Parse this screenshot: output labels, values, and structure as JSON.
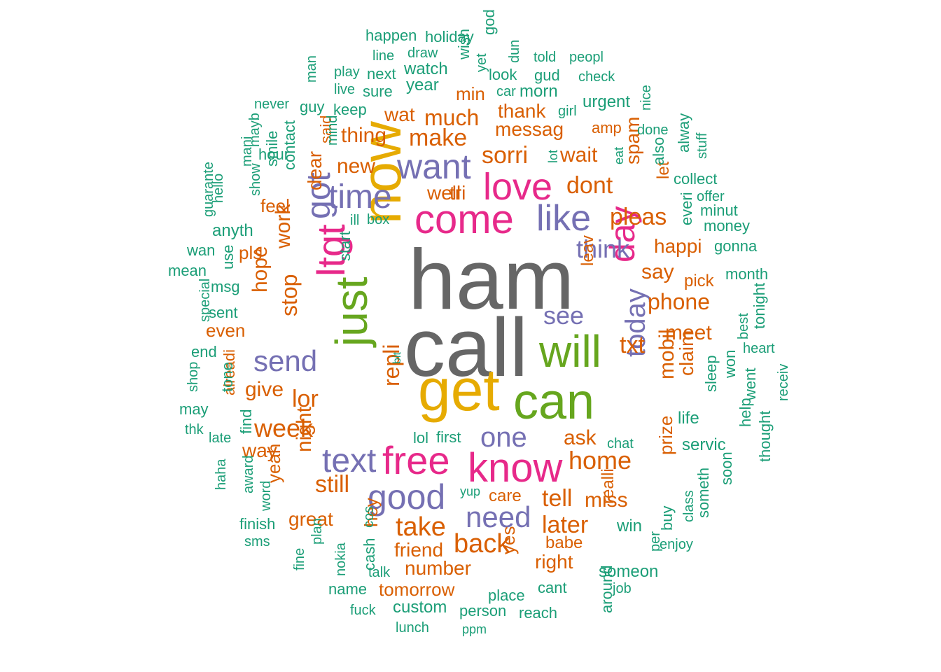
{
  "palette": {
    "gray": "#666666",
    "green": "#1b9e77",
    "orange": "#d95f02",
    "purple": "#7570b3",
    "pink": "#e7298a",
    "olive": "#66a61e",
    "gold": "#e6ab02"
  },
  "words": [
    {
      "text": "ham",
      "color": "gray"
    },
    {
      "text": "call",
      "color": "gray"
    },
    {
      "text": "now",
      "color": "gold"
    },
    {
      "text": "get",
      "color": "gold"
    },
    {
      "text": "can",
      "color": "olive"
    },
    {
      "text": "will",
      "color": "olive"
    },
    {
      "text": "just",
      "color": "olive"
    },
    {
      "text": "come",
      "color": "pink"
    },
    {
      "text": "know",
      "color": "pink"
    },
    {
      "text": "free",
      "color": "pink"
    },
    {
      "text": "love",
      "color": "pink"
    },
    {
      "text": "ltgt",
      "color": "pink"
    },
    {
      "text": "day",
      "color": "pink"
    },
    {
      "text": "want",
      "color": "purple"
    },
    {
      "text": "time",
      "color": "purple"
    },
    {
      "text": "like",
      "color": "purple"
    },
    {
      "text": "good",
      "color": "purple"
    },
    {
      "text": "text",
      "color": "purple"
    },
    {
      "text": "send",
      "color": "purple"
    },
    {
      "text": "got",
      "color": "purple"
    },
    {
      "text": "need",
      "color": "purple"
    },
    {
      "text": "one",
      "color": "purple"
    },
    {
      "text": "today",
      "color": "purple"
    },
    {
      "text": "see",
      "color": "purple"
    },
    {
      "text": "think",
      "color": "purple"
    },
    {
      "text": "take",
      "color": "orange"
    },
    {
      "text": "back",
      "color": "orange"
    },
    {
      "text": "home",
      "color": "orange"
    },
    {
      "text": "sorri",
      "color": "orange"
    },
    {
      "text": "make",
      "color": "orange"
    },
    {
      "text": "week",
      "color": "orange"
    },
    {
      "text": "still",
      "color": "orange"
    },
    {
      "text": "later",
      "color": "orange"
    },
    {
      "text": "tell",
      "color": "orange"
    },
    {
      "text": "miss",
      "color": "orange"
    },
    {
      "text": "phone",
      "color": "orange"
    },
    {
      "text": "dont",
      "color": "orange"
    },
    {
      "text": "pleas",
      "color": "orange"
    },
    {
      "text": "much",
      "color": "orange"
    },
    {
      "text": "new",
      "color": "orange"
    },
    {
      "text": "meet",
      "color": "orange"
    },
    {
      "text": "txt",
      "color": "orange"
    },
    {
      "text": "lor",
      "color": "orange"
    },
    {
      "text": "repli",
      "color": "orange"
    },
    {
      "text": "stop",
      "color": "orange"
    },
    {
      "text": "friend",
      "color": "orange"
    },
    {
      "text": "number",
      "color": "orange"
    },
    {
      "text": "mobil",
      "color": "orange"
    },
    {
      "text": "say",
      "color": "orange"
    },
    {
      "text": "happi",
      "color": "orange"
    },
    {
      "text": "work",
      "color": "orange"
    },
    {
      "text": "ask",
      "color": "orange"
    },
    {
      "text": "wait",
      "color": "orange"
    },
    {
      "text": "thing",
      "color": "orange"
    },
    {
      "text": "messag",
      "color": "orange"
    },
    {
      "text": "thank",
      "color": "orange"
    },
    {
      "text": "wat",
      "color": "orange"
    },
    {
      "text": "well",
      "color": "orange"
    },
    {
      "text": "tri",
      "color": "orange"
    },
    {
      "text": "hope",
      "color": "orange"
    },
    {
      "text": "give",
      "color": "orange"
    },
    {
      "text": "night",
      "color": "orange"
    },
    {
      "text": "great",
      "color": "orange"
    },
    {
      "text": "claim",
      "color": "orange"
    },
    {
      "text": "yes",
      "color": "orange"
    },
    {
      "text": "right",
      "color": "orange"
    },
    {
      "text": "tomorrow",
      "color": "orange"
    },
    {
      "text": "min",
      "color": "orange"
    },
    {
      "text": "dear",
      "color": "orange"
    },
    {
      "text": "spam",
      "color": "orange"
    },
    {
      "text": "feel",
      "color": "orange"
    },
    {
      "text": "pls",
      "color": "orange"
    },
    {
      "text": "even",
      "color": "orange"
    },
    {
      "text": "way",
      "color": "orange"
    },
    {
      "text": "yeah",
      "color": "orange"
    },
    {
      "text": "hey",
      "color": "orange"
    },
    {
      "text": "prize",
      "color": "orange"
    },
    {
      "text": "babe",
      "color": "orange"
    },
    {
      "text": "care",
      "color": "orange"
    },
    {
      "text": "realli",
      "color": "orange"
    },
    {
      "text": "pick",
      "color": "orange"
    },
    {
      "text": "leav",
      "color": "orange"
    },
    {
      "text": "amp",
      "color": "orange"
    },
    {
      "text": "let",
      "color": "orange"
    },
    {
      "text": "alreadi",
      "color": "orange"
    },
    {
      "text": "said",
      "color": "orange"
    },
    {
      "text": "happen",
      "color": "green"
    },
    {
      "text": "holiday",
      "color": "green"
    },
    {
      "text": "god",
      "color": "green"
    },
    {
      "text": "line",
      "color": "green"
    },
    {
      "text": "draw",
      "color": "green"
    },
    {
      "text": "wish",
      "color": "green"
    },
    {
      "text": "dun",
      "color": "green"
    },
    {
      "text": "told",
      "color": "green"
    },
    {
      "text": "peopl",
      "color": "green"
    },
    {
      "text": "play",
      "color": "green"
    },
    {
      "text": "next",
      "color": "green"
    },
    {
      "text": "watch",
      "color": "green"
    },
    {
      "text": "yet",
      "color": "green"
    },
    {
      "text": "look",
      "color": "green"
    },
    {
      "text": "gud",
      "color": "green"
    },
    {
      "text": "check",
      "color": "green"
    },
    {
      "text": "man",
      "color": "green"
    },
    {
      "text": "live",
      "color": "green"
    },
    {
      "text": "sure",
      "color": "green"
    },
    {
      "text": "year",
      "color": "green"
    },
    {
      "text": "car",
      "color": "green"
    },
    {
      "text": "morn",
      "color": "green"
    },
    {
      "text": "never",
      "color": "green"
    },
    {
      "text": "guy",
      "color": "green"
    },
    {
      "text": "keep",
      "color": "green"
    },
    {
      "text": "girl",
      "color": "green"
    },
    {
      "text": "urgent",
      "color": "green"
    },
    {
      "text": "nice",
      "color": "green"
    },
    {
      "text": "mind",
      "color": "green"
    },
    {
      "text": "done",
      "color": "green"
    },
    {
      "text": "alway",
      "color": "green"
    },
    {
      "text": "mani",
      "color": "green"
    },
    {
      "text": "mayb",
      "color": "green"
    },
    {
      "text": "hour",
      "color": "green"
    },
    {
      "text": "contact",
      "color": "green"
    },
    {
      "text": "smile",
      "color": "green"
    },
    {
      "text": "stuff",
      "color": "green"
    },
    {
      "text": "lot",
      "color": "green"
    },
    {
      "text": "eat",
      "color": "green"
    },
    {
      "text": "also",
      "color": "green"
    },
    {
      "text": "collect",
      "color": "green"
    },
    {
      "text": "offer",
      "color": "green"
    },
    {
      "text": "show",
      "color": "green"
    },
    {
      "text": "everi",
      "color": "green"
    },
    {
      "text": "minut",
      "color": "green"
    },
    {
      "text": "hello",
      "color": "green"
    },
    {
      "text": "guarante",
      "color": "green"
    },
    {
      "text": "anyth",
      "color": "green"
    },
    {
      "text": "ill",
      "color": "green"
    },
    {
      "text": "box",
      "color": "green"
    },
    {
      "text": "money",
      "color": "green"
    },
    {
      "text": "wan",
      "color": "green"
    },
    {
      "text": "start",
      "color": "green"
    },
    {
      "text": "gonna",
      "color": "green"
    },
    {
      "text": "mean",
      "color": "green"
    },
    {
      "text": "use",
      "color": "green"
    },
    {
      "text": "msg",
      "color": "green"
    },
    {
      "text": "month",
      "color": "green"
    },
    {
      "text": "special",
      "color": "green"
    },
    {
      "text": "sent",
      "color": "green"
    },
    {
      "text": "best",
      "color": "green"
    },
    {
      "text": "tonight",
      "color": "green"
    },
    {
      "text": "end",
      "color": "green"
    },
    {
      "text": "heart",
      "color": "green"
    },
    {
      "text": "bit",
      "color": "green"
    },
    {
      "text": "won",
      "color": "green"
    },
    {
      "text": "shop",
      "color": "green"
    },
    {
      "text": "tone",
      "color": "green"
    },
    {
      "text": "sleep",
      "color": "green"
    },
    {
      "text": "went",
      "color": "green"
    },
    {
      "text": "receiv",
      "color": "green"
    },
    {
      "text": "may",
      "color": "green"
    },
    {
      "text": "find",
      "color": "green"
    },
    {
      "text": "life",
      "color": "green"
    },
    {
      "text": "help",
      "color": "green"
    },
    {
      "text": "thk",
      "color": "green"
    },
    {
      "text": "late",
      "color": "green"
    },
    {
      "text": "lol",
      "color": "green"
    },
    {
      "text": "first",
      "color": "green"
    },
    {
      "text": "chat",
      "color": "green"
    },
    {
      "text": "servic",
      "color": "green"
    },
    {
      "text": "thought",
      "color": "green"
    },
    {
      "text": "award",
      "color": "green"
    },
    {
      "text": "haha",
      "color": "green"
    },
    {
      "text": "someth",
      "color": "green"
    },
    {
      "text": "soon",
      "color": "green"
    },
    {
      "text": "word",
      "color": "green"
    },
    {
      "text": "yup",
      "color": "green"
    },
    {
      "text": "class",
      "color": "green"
    },
    {
      "text": "buy",
      "color": "green"
    },
    {
      "text": "finish",
      "color": "green"
    },
    {
      "text": "cos",
      "color": "green"
    },
    {
      "text": "win",
      "color": "green"
    },
    {
      "text": "plan",
      "color": "green"
    },
    {
      "text": "nokia",
      "color": "green"
    },
    {
      "text": "cash",
      "color": "green"
    },
    {
      "text": "per",
      "color": "green"
    },
    {
      "text": "enjoy",
      "color": "green"
    },
    {
      "text": "sms",
      "color": "green"
    },
    {
      "text": "fine",
      "color": "green"
    },
    {
      "text": "talk",
      "color": "green"
    },
    {
      "text": "around",
      "color": "green"
    },
    {
      "text": "someon",
      "color": "green"
    },
    {
      "text": "name",
      "color": "green"
    },
    {
      "text": "cant",
      "color": "green"
    },
    {
      "text": "job",
      "color": "green"
    },
    {
      "text": "place",
      "color": "green"
    },
    {
      "text": "fuck",
      "color": "green"
    },
    {
      "text": "custom",
      "color": "green"
    },
    {
      "text": "person",
      "color": "green"
    },
    {
      "text": "reach",
      "color": "green"
    },
    {
      "text": "lunch",
      "color": "green"
    },
    {
      "text": "ppm",
      "color": "green"
    }
  ]
}
